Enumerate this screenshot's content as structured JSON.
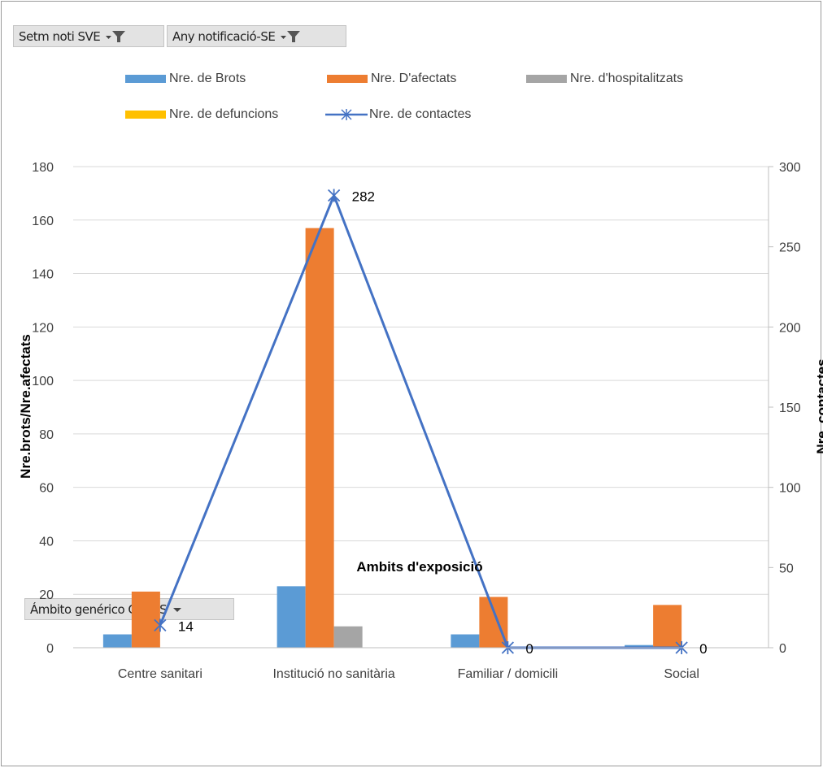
{
  "filters": {
    "week": {
      "label": "Setm noti SVE"
    },
    "year": {
      "label": "Any notificació-SE"
    },
    "scope": {
      "label": "Ámbito genérico  CCAES"
    }
  },
  "colors": {
    "brots": "#5b9bd5",
    "afectats": "#ed7d31",
    "hospitalitzats": "#a5a5a5",
    "defuncions": "#ffc000",
    "contactes": "#4472c4"
  },
  "chart_data": {
    "type": "bar",
    "xlabel": "Ambits d'exposició",
    "ylabel": "Nre.brots/Nre.afectats",
    "y2label": "Nre. contactes",
    "ylim": [
      0,
      180
    ],
    "y2lim": [
      0,
      300
    ],
    "yticks": [
      "0",
      "20",
      "40",
      "60",
      "80",
      "100",
      "120",
      "140",
      "160",
      "180"
    ],
    "y2ticks": [
      "0",
      "50",
      "100",
      "150",
      "200",
      "250",
      "300"
    ],
    "categories": [
      "Centre sanitari",
      "Institució no sanitària",
      "Familiar / domicili",
      "Social"
    ],
    "series": [
      {
        "name": "Nre. de Brots",
        "type": "bar",
        "axis": "left",
        "values": [
          5,
          23,
          5,
          1
        ]
      },
      {
        "name": "Nre. D'afectats",
        "type": "bar",
        "axis": "left",
        "values": [
          21,
          157,
          19,
          16
        ]
      },
      {
        "name": "Nre. d'hospitalitzats",
        "type": "bar",
        "axis": "left",
        "values": [
          0,
          8,
          0,
          0
        ]
      },
      {
        "name": "Nre. de defuncions",
        "type": "bar",
        "axis": "left",
        "values": [
          0,
          0,
          0,
          0
        ]
      },
      {
        "name": "Nre. de contactes",
        "type": "line",
        "axis": "right",
        "values": [
          14,
          282,
          0,
          0
        ],
        "data_labels": [
          "14",
          "282",
          "0",
          "0"
        ]
      }
    ],
    "legend_position": "top",
    "grid": true
  }
}
